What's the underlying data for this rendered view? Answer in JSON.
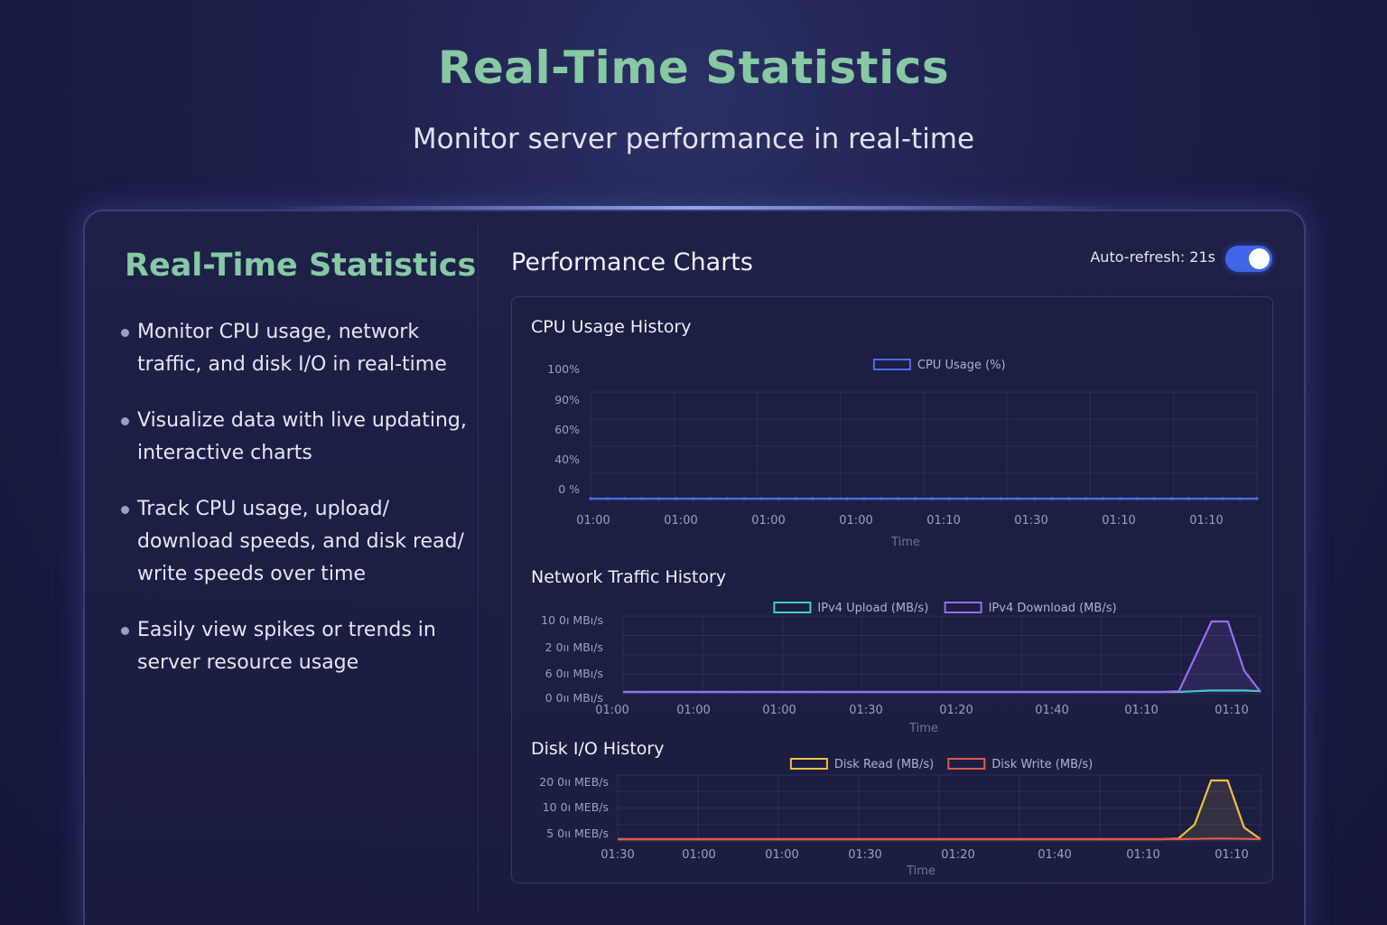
{
  "hero": {
    "title": "Real-Time Statistics",
    "subtitle": "Monitor server performance in real-time"
  },
  "left": {
    "title": "Real-Time Statistics",
    "features": [
      "Monitor CPU usage, network traffic, and disk I/O in real-time",
      "Visualize data with live updating, interactive charts",
      "Track CPU usage, upload/ download speeds, and disk read/ write speeds over time",
      "Easily view spikes or trends in server resource usage"
    ]
  },
  "performance": {
    "title": "Performance Charts",
    "auto_refresh_label": "Auto-refresh: 21s",
    "auto_refresh_on": true
  },
  "colors": {
    "accent_green": "#86c9a3",
    "toggle_blue": "#3f66e6",
    "cpu_line": "#4a6cf0",
    "upload_line": "#3fd0c8",
    "download_line": "#9b6cf0",
    "read_line": "#f0c040",
    "write_line": "#e05a4a"
  },
  "chart_data": [
    {
      "type": "line",
      "title": "CPU Usage History",
      "xlabel": "Time",
      "ylabel": "",
      "y_tick_labels": [
        "100%",
        "90%",
        "60%",
        "40%",
        "0 %"
      ],
      "x_tick_labels": [
        "01:00",
        "01:00",
        "01:00",
        "01:00",
        "01:10",
        "01:30",
        "01:10",
        "01:10"
      ],
      "legend": "top-center",
      "grid": true,
      "series": [
        {
          "name": "CPU Usage (%)",
          "color": "#4a6cf0",
          "values": [
            0,
            0,
            0,
            0,
            0,
            0,
            0,
            0,
            0,
            0,
            0,
            0,
            0,
            0,
            0,
            0,
            0,
            0,
            0,
            0,
            0,
            0,
            0,
            0,
            0,
            0,
            0,
            0,
            0,
            0,
            0,
            0,
            0,
            0,
            0,
            0,
            0,
            0,
            0,
            0
          ]
        }
      ]
    },
    {
      "type": "area",
      "title": "Network Traffic History",
      "xlabel": "Time",
      "ylabel": "",
      "y_tick_labels": [
        "10 0ı MBı/s",
        "2 0ıı MBı/s",
        "6 0ıı MBı/s",
        "0 0ıı MBı/s"
      ],
      "x_tick_labels": [
        "01:00",
        "01:00",
        "01:00",
        "01:30",
        "01:20",
        "01:40",
        "01:10",
        "01:10"
      ],
      "legend": "top-center",
      "grid": true,
      "series": [
        {
          "name": "IPv4 Upload (MB/s)",
          "color": "#3fd0c8",
          "values": [
            0,
            0,
            0,
            0,
            0,
            0,
            0,
            0,
            0,
            0,
            0,
            0,
            0,
            0,
            0,
            0,
            0,
            0,
            0,
            0,
            0,
            0,
            0,
            0,
            0,
            0,
            0,
            0,
            0,
            0,
            0,
            0,
            0,
            0,
            0,
            0.1,
            0.2,
            0.2,
            0.2,
            0.1
          ]
        },
        {
          "name": "IPv4 Download (MB/s)",
          "color": "#9b6cf0",
          "values": [
            0,
            0,
            0,
            0,
            0,
            0,
            0,
            0,
            0,
            0,
            0,
            0,
            0,
            0,
            0,
            0,
            0,
            0,
            0,
            0,
            0,
            0,
            0,
            0,
            0,
            0,
            0,
            0,
            0,
            0,
            0,
            0,
            0,
            0,
            0.1,
            5.0,
            10.0,
            10.0,
            3.0,
            0
          ]
        }
      ]
    },
    {
      "type": "area",
      "title": "Disk I/O History",
      "xlabel": "Time",
      "ylabel": "",
      "y_tick_labels": [
        "20 0ıı MEB/s",
        "10 0ı MEB/s",
        "5 0ıı MEB/s"
      ],
      "x_tick_labels": [
        "01:30",
        "01:00",
        "01:00",
        "01:30",
        "01:20",
        "01:40",
        "01:10",
        "01:10"
      ],
      "legend": "top-center",
      "grid": true,
      "series": [
        {
          "name": "Disk Read (MB/s)",
          "color": "#f0c040",
          "values": [
            0,
            0,
            0,
            0,
            0,
            0,
            0,
            0,
            0,
            0,
            0,
            0,
            0,
            0,
            0,
            0,
            0,
            0,
            0,
            0,
            0,
            0,
            0,
            0,
            0,
            0,
            0,
            0,
            0,
            0,
            0,
            0,
            0,
            0,
            0.2,
            5.0,
            20.0,
            20.0,
            4.0,
            0
          ]
        },
        {
          "name": "Disk Write (MB/s)",
          "color": "#e05a4a",
          "values": [
            0,
            0,
            0,
            0,
            0,
            0,
            0,
            0,
            0,
            0,
            0,
            0,
            0,
            0,
            0,
            0,
            0,
            0,
            0,
            0,
            0,
            0,
            0,
            0,
            0,
            0,
            0,
            0,
            0,
            0,
            0,
            0,
            0,
            0,
            0,
            0.1,
            0.2,
            0.2,
            0.1,
            0
          ]
        }
      ]
    }
  ]
}
